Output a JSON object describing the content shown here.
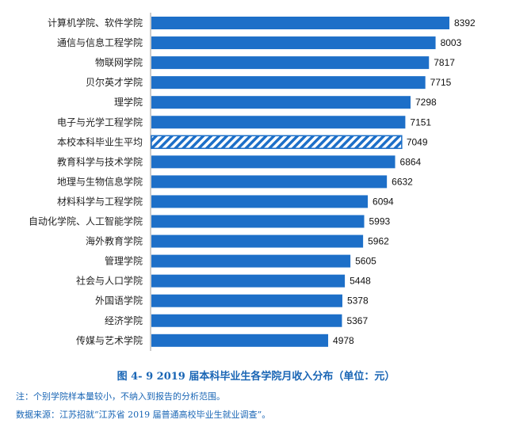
{
  "chart_data": {
    "type": "bar",
    "orientation": "horizontal",
    "categories": [
      "计算机学院、软件学院",
      "通信与信息工程学院",
      "物联网学院",
      "贝尔英才学院",
      "理学院",
      "电子与光学工程学院",
      "本校本科毕业生平均",
      "教育科学与技术学院",
      "地理与生物信息学院",
      "材料科学与工程学院",
      "自动化学院、人工智能学院",
      "海外教育学院",
      "管理学院",
      "社会与人口学院",
      "外国语学院",
      "经济学院",
      "传媒与艺术学院"
    ],
    "values": [
      8392,
      8003,
      7817,
      7715,
      7298,
      7151,
      7049,
      6864,
      6632,
      6094,
      5993,
      5962,
      5605,
      5448,
      5378,
      5367,
      4978
    ],
    "highlight": "本校本科毕业生平均",
    "xlim": [
      0,
      8392
    ],
    "grid": false,
    "legend": "none",
    "title": "图 4- 9    2019 届本科毕业生各学院月收入分布（单位：元）",
    "xlabel": "",
    "ylabel": ""
  },
  "notes": {
    "note1": "注：个别学院样本量较小，不纳入到报告的分析范围。",
    "note2": "数据来源：江苏招就“江苏省 2019 届普通高校毕业生就业调查”。"
  },
  "colors": {
    "bar": "#1d6fc8",
    "highlight_stripe": "#1d6fc8",
    "caption": "#1a66b5"
  }
}
